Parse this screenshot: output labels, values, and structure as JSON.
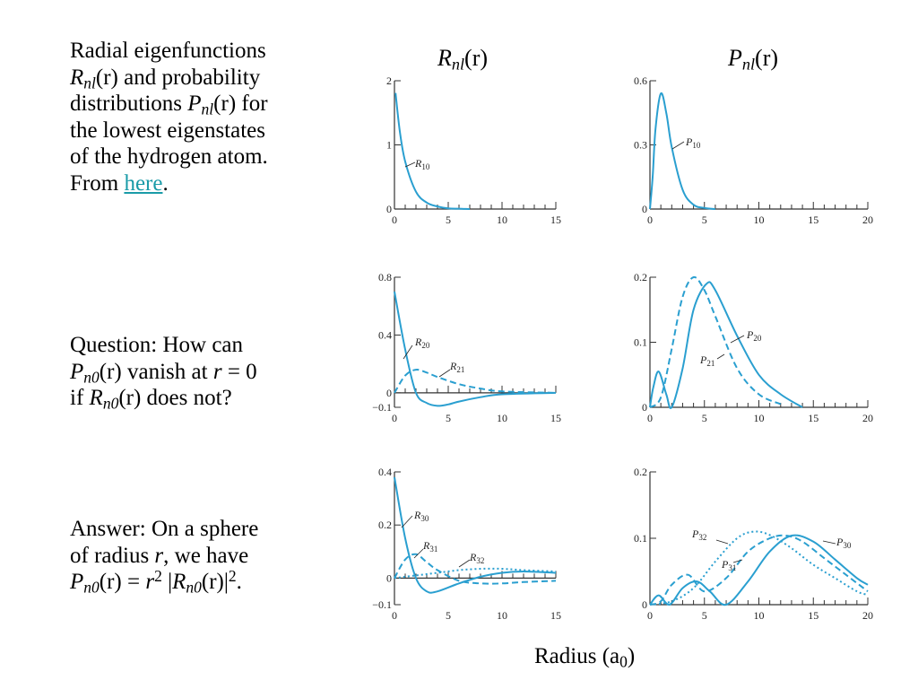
{
  "caption": {
    "line1": "Radial eigenfunctions",
    "line2_sym": "R",
    "line2_sub": "nl",
    "line2_arg": "(r)",
    "line2_rest": " and probability",
    "line3_pre": "distributions ",
    "line3_sym": "P",
    "line3_sub": "nl",
    "line3_arg": "(r)",
    "line3_rest": " for",
    "line4": "the lowest eigenstates",
    "line5": "of the hydrogen atom.",
    "line6_pre": "From ",
    "link_text": "here",
    "line6_post": "."
  },
  "question": {
    "line1": "Question:  How can",
    "sym1": "P",
    "sub1": "n0",
    "arg1": "(r)",
    "mid": " vanish at ",
    "var": "r",
    "eq": " = 0",
    "line3_pre": "if ",
    "sym2": "R",
    "sub2": "n0",
    "arg2": "(r)",
    "line3_post": " does not?"
  },
  "answer": {
    "line1": "Answer:  On a sphere",
    "line2_pre": "of radius ",
    "var": "r",
    "line2_post": ", we have",
    "sym1": "P",
    "sub1": "n0",
    "arg1": "(r)",
    "eq": " = ",
    "r": "r",
    "exp": "2",
    "abs_open": " |",
    "sym2": "R",
    "sub2": "n0",
    "arg2": "(r)",
    "abs_close": "|",
    "exp2": "2",
    "end": "."
  },
  "headers": {
    "left_sym": "R",
    "left_sub": "nl",
    "left_arg": "(r)",
    "right_sym": "P",
    "right_sub": "nl",
    "right_arg": "(r)"
  },
  "xaxis_label": {
    "text": "Radius (a",
    "sub": "0",
    "close": ")"
  },
  "colors": {
    "curve": "#2a9fd0",
    "axis": "#333333",
    "link": "#1a9ba8"
  },
  "chart_data": [
    {
      "type": "line",
      "id": "R1",
      "xlim": [
        0,
        15
      ],
      "ylim": [
        0,
        2
      ],
      "xticks": [
        "0",
        "5",
        "10",
        "15"
      ],
      "yticks": [
        {
          "v": 0,
          "t": "0"
        },
        {
          "v": 1,
          "t": "1"
        },
        {
          "v": 2,
          "t": "2"
        }
      ],
      "series": [
        {
          "name": "R10",
          "style": "solid",
          "x": [
            0.1,
            0.5,
            1,
            2,
            3,
            4,
            5,
            6,
            7
          ],
          "y": [
            1.81,
            1.21,
            0.74,
            0.27,
            0.1,
            0.04,
            0.01,
            0.005,
            0
          ]
        }
      ]
    },
    {
      "type": "line",
      "id": "P1",
      "xlim": [
        0,
        20
      ],
      "ylim": [
        0,
        0.6
      ],
      "xticks": [
        "0",
        "5",
        "10",
        "15",
        "20"
      ],
      "yticks": [
        {
          "v": 0,
          "t": "0"
        },
        {
          "v": 0.3,
          "t": "0.3"
        },
        {
          "v": 0.6,
          "t": "0.6"
        }
      ],
      "series": [
        {
          "name": "P10",
          "style": "solid",
          "x": [
            0,
            0.25,
            0.5,
            1,
            1.5,
            2,
            3,
            4,
            5,
            6
          ],
          "y": [
            0,
            0.15,
            0.37,
            0.54,
            0.45,
            0.29,
            0.09,
            0.02,
            0.005,
            0
          ]
        }
      ]
    },
    {
      "type": "line",
      "id": "R2",
      "xlim": [
        0,
        15
      ],
      "ylim": [
        -0.1,
        0.8
      ],
      "xticks": [
        "0",
        "5",
        "10",
        "15"
      ],
      "yticks": [
        {
          "v": -0.1,
          "t": "−0.1"
        },
        {
          "v": 0,
          "t": "0"
        },
        {
          "v": 0.4,
          "t": "0.4"
        },
        {
          "v": 0.8,
          "t": "0.8"
        }
      ],
      "series": [
        {
          "name": "R20",
          "style": "solid",
          "x": [
            0,
            1,
            2,
            3,
            4,
            5,
            6,
            8,
            10,
            15
          ],
          "y": [
            0.7,
            0.3,
            0,
            -0.07,
            -0.09,
            -0.08,
            -0.06,
            -0.03,
            -0.01,
            0
          ]
        },
        {
          "name": "R21",
          "style": "dashed",
          "x": [
            0,
            1,
            2,
            3,
            4,
            6,
            8,
            10,
            15
          ],
          "y": [
            0,
            0.12,
            0.16,
            0.14,
            0.11,
            0.06,
            0.03,
            0.01,
            0
          ]
        }
      ]
    },
    {
      "type": "line",
      "id": "P2",
      "xlim": [
        0,
        20
      ],
      "ylim": [
        0,
        0.2
      ],
      "xticks": [
        "0",
        "5",
        "10",
        "15",
        "20"
      ],
      "yticks": [
        {
          "v": 0,
          "t": "0"
        },
        {
          "v": 0.1,
          "t": "0.1"
        },
        {
          "v": 0.2,
          "t": "0.2"
        }
      ],
      "series": [
        {
          "name": "P20",
          "style": "solid",
          "x": [
            0,
            0.3,
            0.8,
            1.5,
            2,
            3,
            4,
            5.2,
            6,
            8,
            10,
            12,
            14
          ],
          "y": [
            0,
            0.03,
            0.055,
            0.02,
            0,
            0.06,
            0.15,
            0.19,
            0.18,
            0.11,
            0.05,
            0.02,
            0
          ]
        },
        {
          "name": "P21",
          "style": "dashed",
          "x": [
            0,
            1,
            2,
            3,
            4,
            5,
            6,
            8,
            10,
            12
          ],
          "y": [
            0,
            0.015,
            0.09,
            0.17,
            0.2,
            0.18,
            0.14,
            0.06,
            0.02,
            0.005
          ]
        }
      ]
    },
    {
      "type": "line",
      "id": "R3",
      "xlim": [
        0,
        15
      ],
      "ylim": [
        -0.1,
        0.4
      ],
      "xticks": [
        "0",
        "5",
        "10",
        "15"
      ],
      "yticks": [
        {
          "v": -0.1,
          "t": "−0.1"
        },
        {
          "v": 0,
          "t": "0"
        },
        {
          "v": 0.2,
          "t": "0.2"
        },
        {
          "v": 0.4,
          "t": "0.4"
        }
      ],
      "series": [
        {
          "name": "R30",
          "style": "solid",
          "x": [
            0,
            1,
            2,
            3,
            4,
            6,
            8,
            10,
            12,
            15
          ],
          "y": [
            0.38,
            0.15,
            0,
            -0.05,
            -0.05,
            -0.02,
            0.005,
            0.02,
            0.025,
            0.02
          ]
        },
        {
          "name": "R31",
          "style": "dashed",
          "x": [
            0,
            1,
            2,
            3,
            4,
            6,
            8,
            10,
            12,
            15
          ],
          "y": [
            0,
            0.07,
            0.09,
            0.06,
            0.03,
            -0.01,
            -0.02,
            -0.02,
            -0.015,
            -0.01
          ]
        },
        {
          "name": "R32",
          "style": "dotted",
          "x": [
            0,
            2,
            4,
            6,
            8,
            10,
            12,
            15
          ],
          "y": [
            0,
            0.01,
            0.02,
            0.03,
            0.035,
            0.035,
            0.03,
            0.025
          ]
        }
      ]
    },
    {
      "type": "line",
      "id": "P3",
      "xlim": [
        0,
        20
      ],
      "ylim": [
        0,
        0.2
      ],
      "xticks": [
        "0",
        "5",
        "10",
        "15",
        "20"
      ],
      "yticks": [
        {
          "v": 0,
          "t": "0"
        },
        {
          "v": 0.1,
          "t": "0.1"
        },
        {
          "v": 0.2,
          "t": "0.2"
        }
      ],
      "series": [
        {
          "name": "P30",
          "style": "solid",
          "x": [
            0,
            0.8,
            1.8,
            3,
            4.3,
            5.5,
            7,
            9,
            11,
            13,
            15,
            17,
            19,
            20
          ],
          "y": [
            0,
            0.014,
            0,
            0.025,
            0.035,
            0.02,
            0,
            0.035,
            0.08,
            0.104,
            0.095,
            0.068,
            0.04,
            0.03
          ]
        },
        {
          "name": "P31",
          "style": "dashed",
          "x": [
            0,
            1,
            2,
            3.5,
            5,
            7,
            9,
            11,
            12.5,
            14,
            16,
            18,
            20
          ],
          "y": [
            0,
            0.005,
            0.03,
            0.045,
            0.02,
            0.04,
            0.08,
            0.1,
            0.104,
            0.095,
            0.07,
            0.045,
            0.02
          ]
        },
        {
          "name": "P32",
          "style": "dotted",
          "x": [
            0,
            2,
            4,
            6,
            8,
            9.5,
            11,
            13,
            15,
            17,
            19,
            20
          ],
          "y": [
            0,
            0.005,
            0.025,
            0.065,
            0.1,
            0.11,
            0.105,
            0.085,
            0.06,
            0.04,
            0.02,
            0.015
          ]
        }
      ]
    }
  ]
}
